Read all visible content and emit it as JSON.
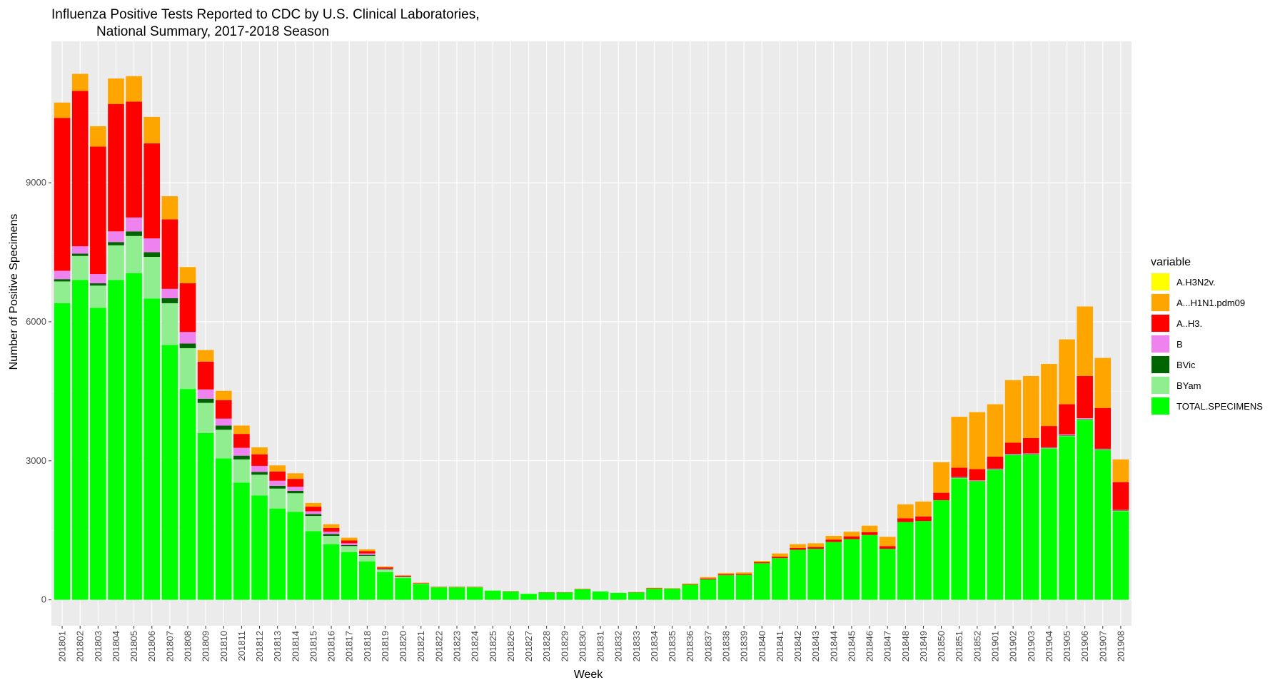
{
  "chart_data": {
    "type": "bar",
    "stacked": true,
    "title_line1": "Influenza Positive Tests Reported to CDC by U.S. Clinical Laboratories,",
    "title_line2": "National Summary, 2017-2018 Season",
    "xlabel": "Week",
    "ylabel": "Number of Positive Specimens",
    "ylim": [
      -560,
      12050
    ],
    "yticks": [
      0,
      3000,
      6000,
      9000
    ],
    "grid": true,
    "legend_position": "right",
    "legend_title": "variable",
    "categories": [
      "201801",
      "201802",
      "201803",
      "201804",
      "201805",
      "201806",
      "201807",
      "201808",
      "201809",
      "201810",
      "201811",
      "201812",
      "201813",
      "201814",
      "201815",
      "201816",
      "201817",
      "201818",
      "201819",
      "201820",
      "201821",
      "201822",
      "201823",
      "201824",
      "201825",
      "201826",
      "201827",
      "201828",
      "201829",
      "201830",
      "201831",
      "201832",
      "201833",
      "201834",
      "201835",
      "201836",
      "201837",
      "201838",
      "201839",
      "201840",
      "201841",
      "201842",
      "201843",
      "201844",
      "201845",
      "201846",
      "201847",
      "201848",
      "201849",
      "201850",
      "201851",
      "201852",
      "201901",
      "201902",
      "201903",
      "201904",
      "201905",
      "201906",
      "201907",
      "201908"
    ],
    "series": [
      {
        "name": "TOTAL.SPECIMENS",
        "color": "#00ff00",
        "values": [
          6400,
          6900,
          6300,
          6900,
          7050,
          6500,
          5500,
          4550,
          3600,
          3050,
          2530,
          2250,
          1970,
          1900,
          1480,
          1200,
          1030,
          830,
          600,
          470,
          340,
          270,
          270,
          270,
          200,
          180,
          130,
          160,
          160,
          230,
          180,
          150,
          160,
          240,
          240,
          330,
          440,
          530,
          540,
          790,
          900,
          1080,
          1100,
          1250,
          1310,
          1400,
          1100,
          1680,
          1700,
          2150,
          2620,
          2550,
          2800,
          3120,
          3130,
          3260,
          3530,
          3880,
          3230,
          1910
        ]
      },
      {
        "name": "BYam",
        "color": "#90ee90",
        "values": [
          470,
          520,
          480,
          750,
          800,
          900,
          900,
          880,
          650,
          620,
          500,
          450,
          430,
          400,
          330,
          180,
          130,
          120,
          50,
          20,
          10,
          5,
          5,
          5,
          0,
          0,
          0,
          0,
          0,
          0,
          0,
          0,
          0,
          0,
          0,
          0,
          0,
          0,
          0,
          0,
          0,
          0,
          0,
          0,
          0,
          0,
          0,
          0,
          0,
          0,
          10,
          10,
          10,
          10,
          10,
          10,
          10,
          10,
          10,
          10
        ]
      },
      {
        "name": "BVic",
        "color": "#006400",
        "values": [
          50,
          50,
          50,
          70,
          100,
          100,
          110,
          100,
          90,
          90,
          80,
          60,
          60,
          50,
          40,
          40,
          20,
          20,
          10,
          5,
          0,
          0,
          0,
          0,
          0,
          0,
          0,
          0,
          0,
          0,
          0,
          0,
          0,
          0,
          0,
          0,
          0,
          0,
          0,
          0,
          0,
          0,
          0,
          0,
          0,
          0,
          0,
          0,
          0,
          0,
          10,
          10,
          10,
          10,
          10,
          10,
          10,
          10,
          10,
          10
        ]
      },
      {
        "name": "B",
        "color": "#ee82ee",
        "values": [
          180,
          160,
          200,
          230,
          300,
          300,
          200,
          250,
          200,
          150,
          170,
          130,
          110,
          90,
          60,
          50,
          40,
          30,
          10,
          5,
          0,
          0,
          0,
          0,
          0,
          0,
          0,
          0,
          0,
          0,
          0,
          0,
          0,
          0,
          0,
          0,
          0,
          0,
          0,
          0,
          0,
          0,
          0,
          0,
          0,
          0,
          0,
          0,
          0,
          0,
          10,
          10,
          10,
          10,
          10,
          10,
          20,
          20,
          10,
          10
        ]
      },
      {
        "name": "A..H3.",
        "color": "#ff0000",
        "values": [
          3300,
          3350,
          2750,
          2750,
          2500,
          2050,
          1500,
          1050,
          600,
          400,
          300,
          250,
          200,
          170,
          100,
          80,
          60,
          50,
          30,
          20,
          10,
          5,
          5,
          5,
          0,
          5,
          0,
          5,
          5,
          5,
          0,
          0,
          5,
          10,
          5,
          10,
          20,
          20,
          20,
          20,
          30,
          40,
          40,
          50,
          60,
          60,
          60,
          80,
          100,
          160,
          200,
          240,
          260,
          240,
          330,
          460,
          650,
          910,
          880,
          600
        ]
      },
      {
        "name": "A...H1N1.pdm09",
        "color": "#ffa500",
        "values": [
          330,
          370,
          440,
          550,
          550,
          570,
          500,
          350,
          250,
          200,
          180,
          150,
          130,
          120,
          80,
          80,
          60,
          40,
          20,
          10,
          10,
          5,
          5,
          5,
          0,
          0,
          0,
          0,
          0,
          5,
          0,
          0,
          5,
          10,
          5,
          10,
          30,
          30,
          30,
          30,
          70,
          80,
          80,
          80,
          100,
          140,
          200,
          300,
          320,
          660,
          1100,
          1230,
          1130,
          1350,
          1340,
          1340,
          1400,
          1500,
          1080,
          490
        ]
      },
      {
        "name": "A.H3N2v.",
        "color": "#ffff00",
        "values": [
          0,
          0,
          0,
          0,
          0,
          0,
          0,
          0,
          0,
          0,
          0,
          0,
          0,
          0,
          0,
          0,
          0,
          0,
          0,
          0,
          0,
          0,
          0,
          0,
          0,
          0,
          0,
          0,
          0,
          0,
          0,
          0,
          0,
          0,
          0,
          0,
          0,
          0,
          0,
          0,
          0,
          0,
          0,
          0,
          0,
          0,
          0,
          0,
          0,
          0,
          0,
          0,
          0,
          0,
          0,
          0,
          0,
          0,
          0,
          0
        ]
      }
    ],
    "legend_order": [
      "A.H3N2v.",
      "A...H1N1.pdm09",
      "A..H3.",
      "B",
      "BVic",
      "BYam",
      "TOTAL.SPECIMENS"
    ]
  }
}
